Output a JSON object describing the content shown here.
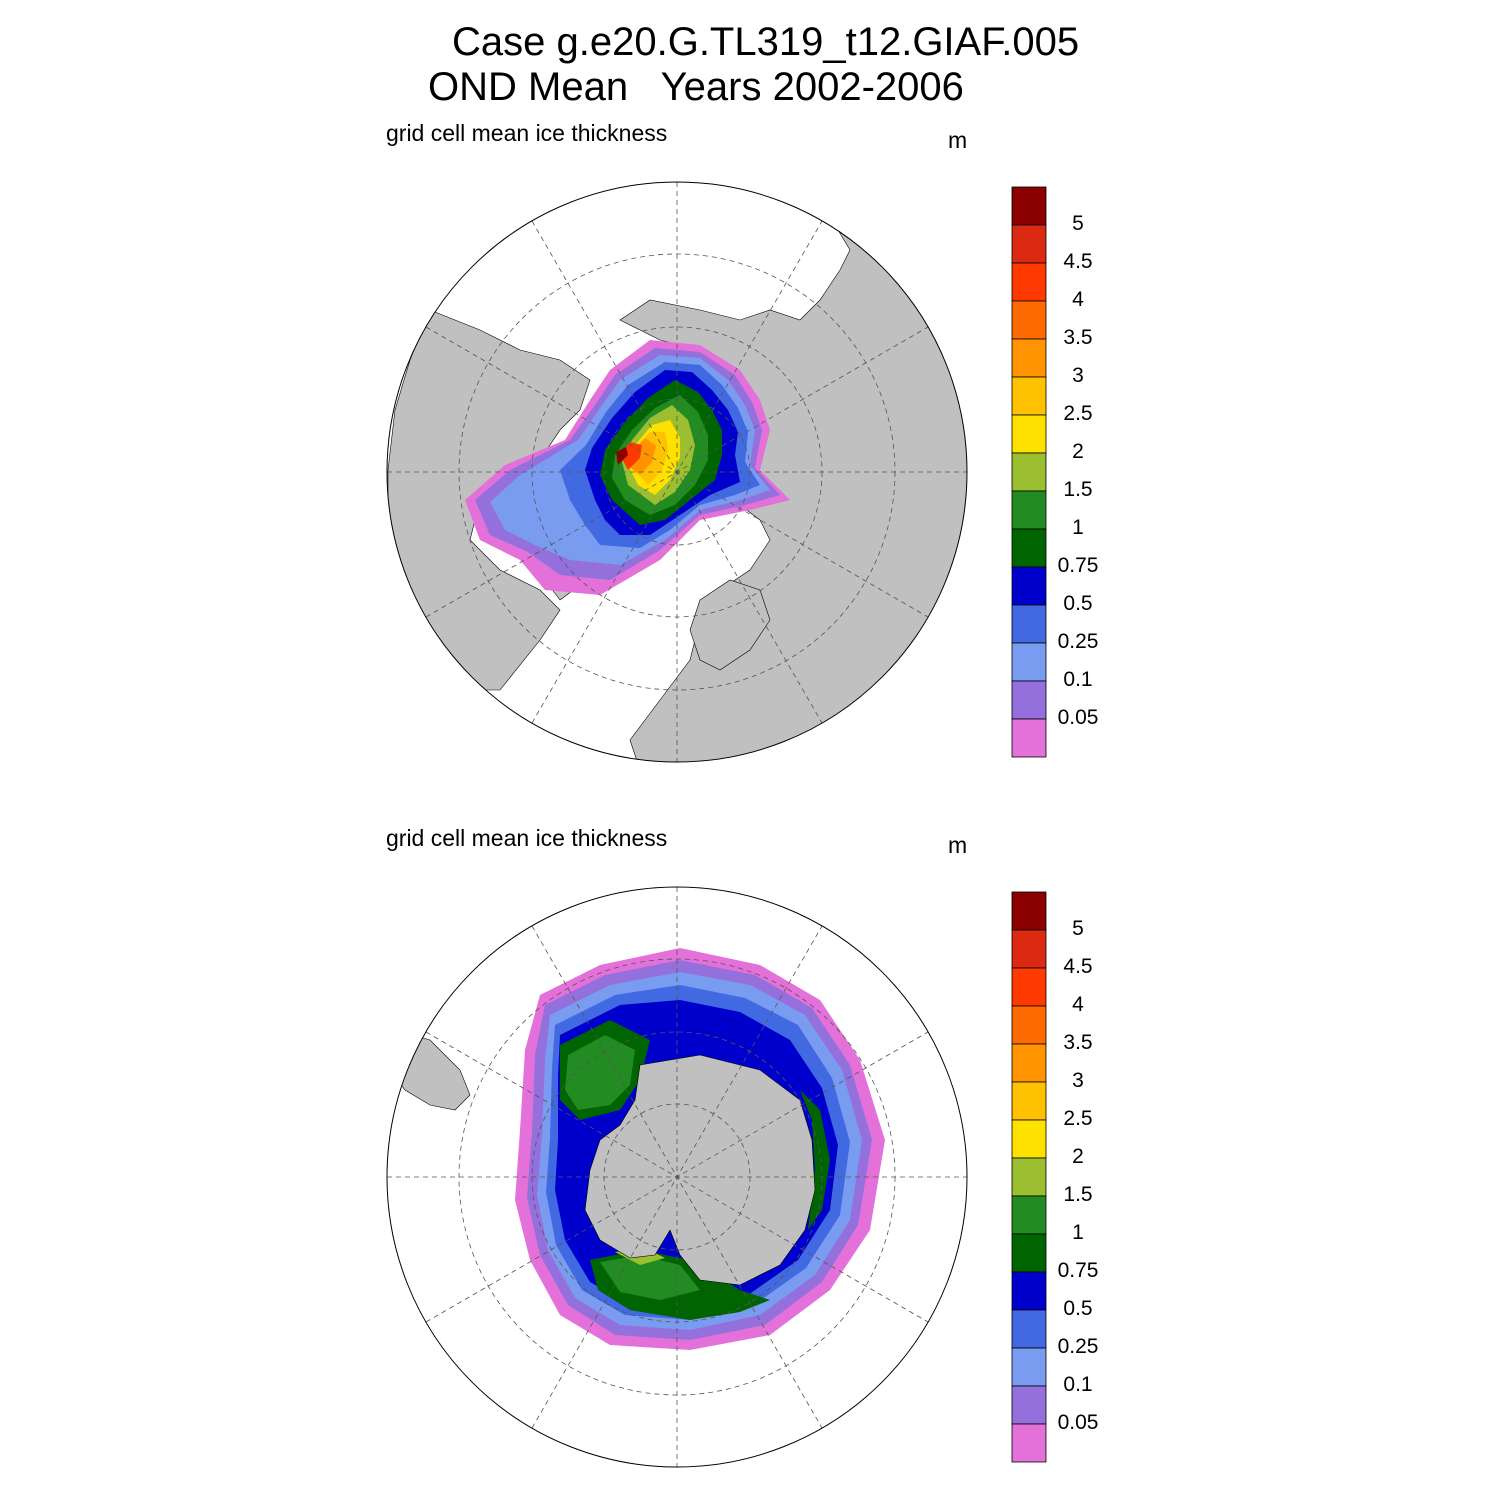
{
  "title": {
    "line1": "Case g.e20.G.TL319_t12.GIAF.005",
    "line2": "OND Mean   Years 2002-2006"
  },
  "panels": [
    {
      "id": "north",
      "label": "grid cell mean ice thickness",
      "unit": "m"
    },
    {
      "id": "south",
      "label": "grid cell mean ice thickness",
      "unit": "m"
    }
  ],
  "colorbar": {
    "labels": [
      "5",
      "4.5",
      "4",
      "3.5",
      "3",
      "2.5",
      "2",
      "1.5",
      "1",
      "0.75",
      "0.5",
      "0.25",
      "0.1",
      "0.05"
    ],
    "colors_top_to_bottom": [
      "#8b0000",
      "#dc2a12",
      "#ff3a00",
      "#ff6a00",
      "#ff9300",
      "#ffc200",
      "#ffe100",
      "#9bbf30",
      "#228b22",
      "#006400",
      "#0000cd",
      "#4169e1",
      "#7a9cf0",
      "#9370db",
      "#e471d9"
    ]
  },
  "map_colors": {
    "land": "#c0c0c0",
    "ocean": "#ffffff",
    "grid": "#555555"
  }
}
